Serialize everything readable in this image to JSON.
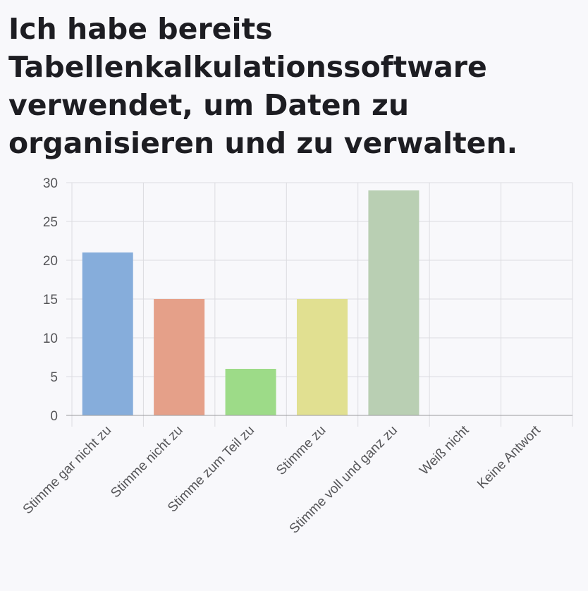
{
  "chart_data": {
    "type": "bar",
    "title": "Ich habe bereits Tabellenkalkulationssoftware verwendet, um Daten zu organisieren und zu verwalten.",
    "categories": [
      "Stimme gar nicht zu",
      "Stimme nicht zu",
      "Stimme zum Teil zu",
      "Stimme zu",
      "Stimme voll und ganz zu",
      "Weiß nicht",
      "Keine Antwort"
    ],
    "values": [
      21,
      15,
      6,
      15,
      29,
      0,
      0
    ],
    "colors": [
      "#86ADDB",
      "#E5A089",
      "#9DDB88",
      "#E1E091",
      "#B9CFB3",
      "#cccccc",
      "#cccccc"
    ],
    "ylim": [
      0,
      30
    ],
    "yticks": [
      0,
      5,
      10,
      15,
      20,
      25,
      30
    ],
    "xlabel": "",
    "ylabel": "",
    "grid": true,
    "legend": "none"
  }
}
